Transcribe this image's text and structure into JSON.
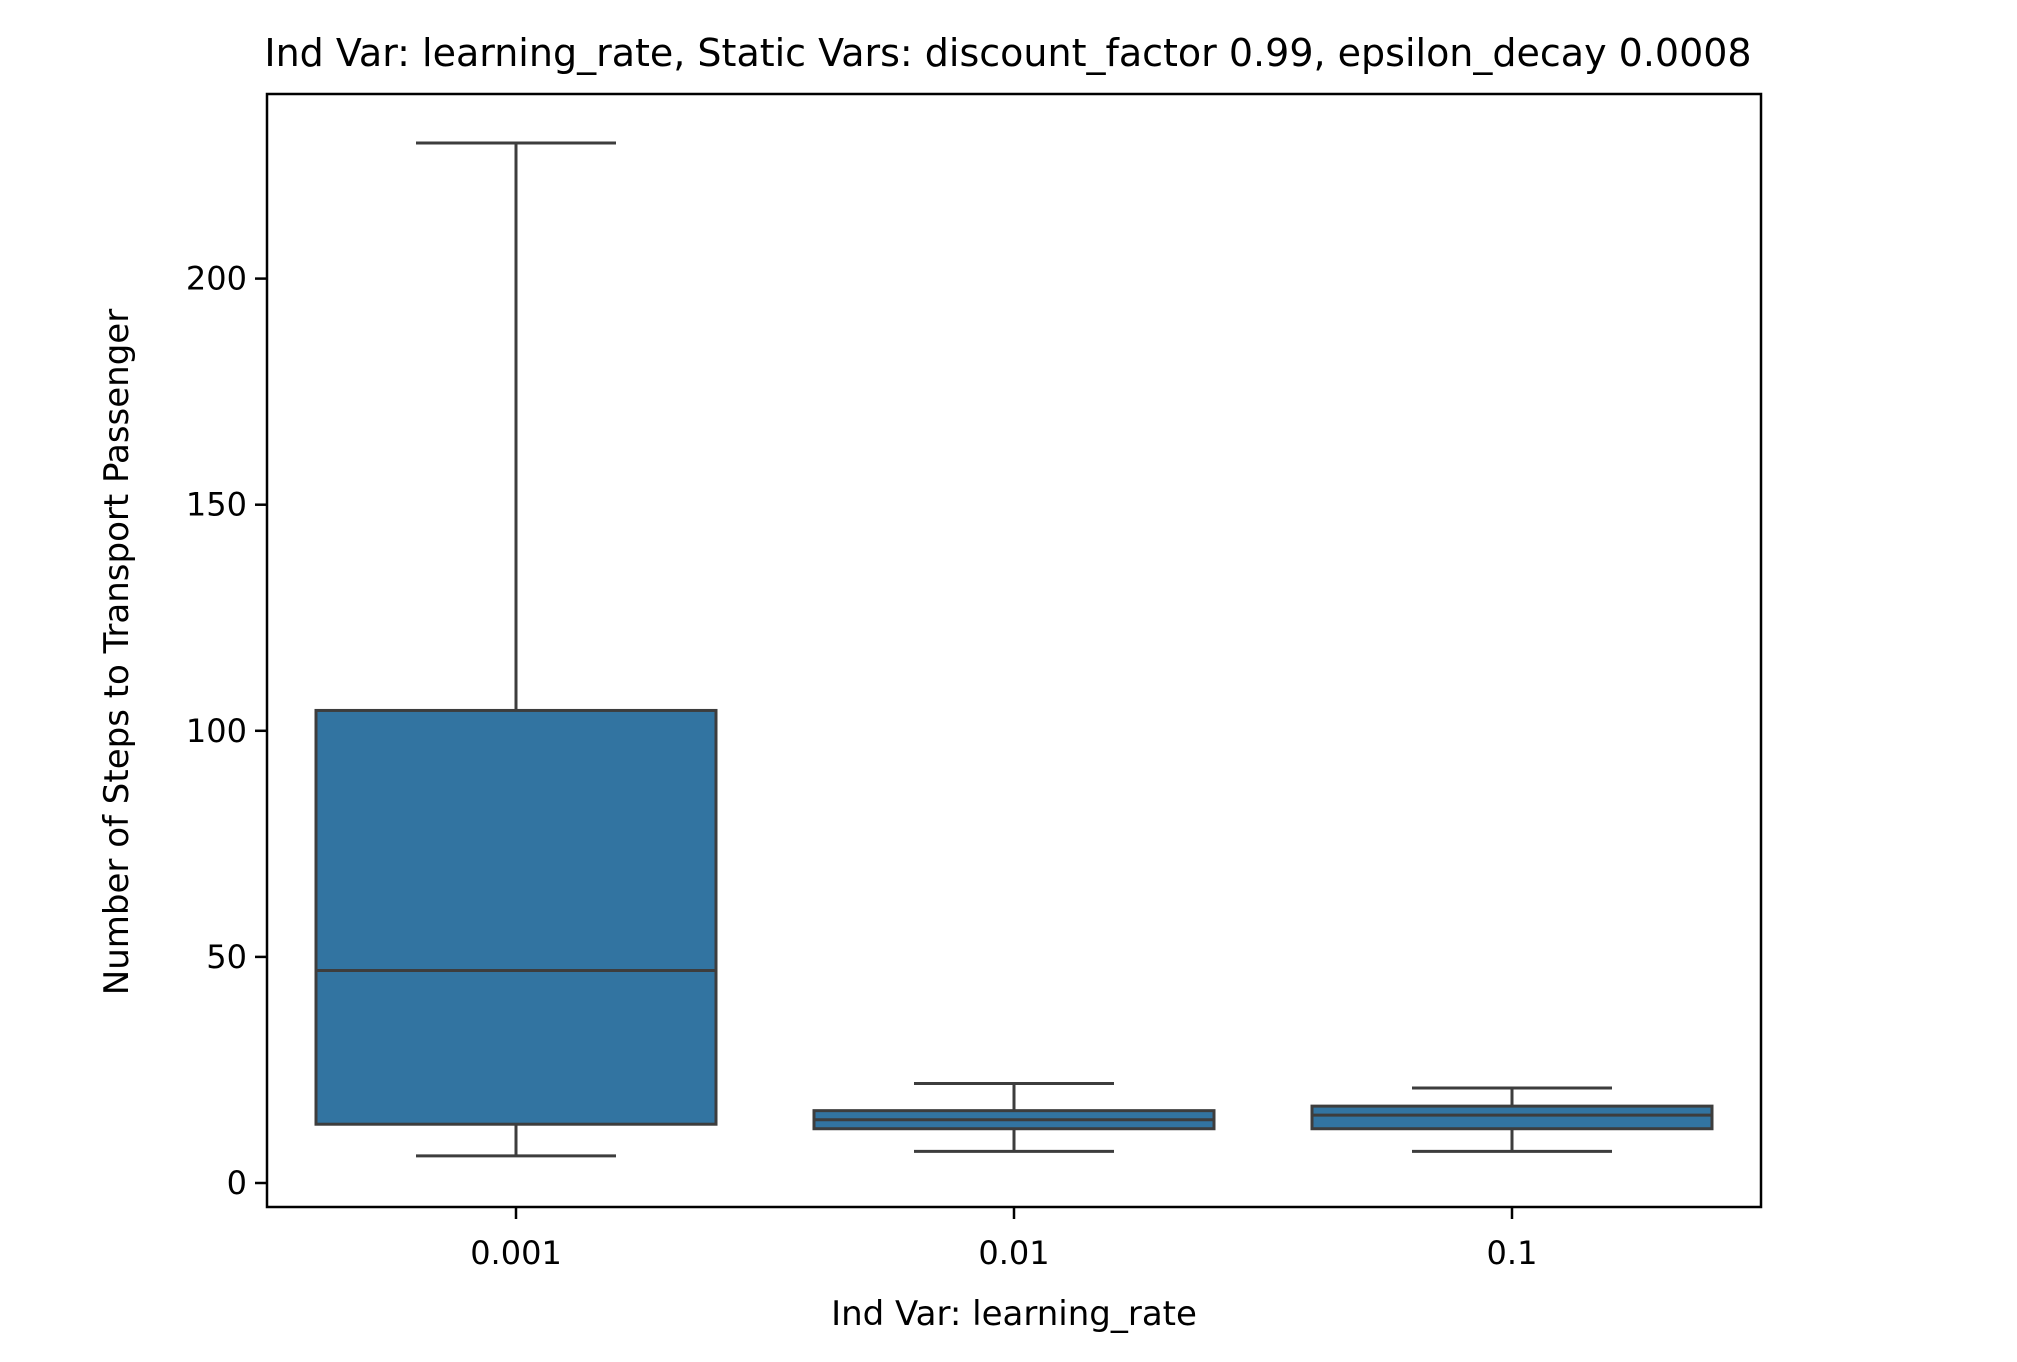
{
  "chart_data": {
    "type": "box",
    "title": "Ind Var: learning_rate, Static Vars: discount_factor 0.99, epsilon_decay 0.0008",
    "xlabel": "Ind Var: learning_rate",
    "ylabel": "Number of Steps to Transport Passenger",
    "categories": [
      "0.001",
      "0.01",
      "0.1"
    ],
    "ylim": [
      -5,
      241
    ],
    "yticks": [
      0,
      50,
      100,
      150,
      200
    ],
    "box_color": "#3274a1",
    "line_color": "#3d3d3d",
    "grid": false,
    "boxes": [
      {
        "category": "0.001",
        "whisker_low": 6,
        "q1": 13,
        "median": 47,
        "q3": 104.5,
        "whisker_high": 230
      },
      {
        "category": "0.01",
        "whisker_low": 7,
        "q1": 12,
        "median": 14,
        "q3": 16,
        "whisker_high": 22
      },
      {
        "category": "0.1",
        "whisker_low": 7,
        "q1": 12,
        "median": 15,
        "q3": 17,
        "whisker_high": 21
      }
    ]
  }
}
